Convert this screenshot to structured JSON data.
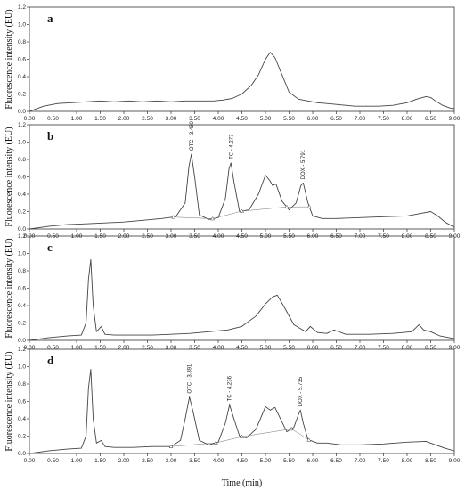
{
  "xlabel": "Time (min)",
  "chart_data": [
    {
      "type": "line",
      "panel": "a",
      "ylabel": "Fluorescence intensity (EU)",
      "xlim": [
        0,
        9
      ],
      "ylim": [
        0,
        1.2
      ],
      "x_ticks": [
        "0.00",
        "0.50",
        "1.00",
        "1.50",
        "2.00",
        "2.50",
        "3.00",
        "3.50",
        "4.00",
        "4.50",
        "5.00",
        "5.50",
        "6.00",
        "6.50",
        "7.00",
        "7.50",
        "8.00",
        "8.50",
        "9.00"
      ],
      "y_ticks": [
        "0.0",
        "0.2",
        "0.4",
        "0.6",
        "0.8",
        "1.0",
        "1.2"
      ],
      "x": [
        0.0,
        0.3,
        0.6,
        0.9,
        1.2,
        1.5,
        1.8,
        2.1,
        2.4,
        2.7,
        3.0,
        3.3,
        3.6,
        3.9,
        4.1,
        4.3,
        4.5,
        4.7,
        4.85,
        5.0,
        5.1,
        5.2,
        5.35,
        5.5,
        5.7,
        5.9,
        6.1,
        6.3,
        6.5,
        6.7,
        6.9,
        7.1,
        7.4,
        7.7,
        8.0,
        8.2,
        8.4,
        8.5,
        8.6,
        8.75,
        8.9,
        9.0
      ],
      "y": [
        0.0,
        0.06,
        0.09,
        0.1,
        0.11,
        0.12,
        0.11,
        0.12,
        0.11,
        0.12,
        0.11,
        0.12,
        0.12,
        0.12,
        0.13,
        0.15,
        0.2,
        0.3,
        0.42,
        0.6,
        0.68,
        0.62,
        0.42,
        0.22,
        0.14,
        0.12,
        0.1,
        0.09,
        0.08,
        0.07,
        0.06,
        0.06,
        0.06,
        0.07,
        0.1,
        0.14,
        0.17,
        0.16,
        0.12,
        0.07,
        0.04,
        0.03
      ],
      "peaks": []
    },
    {
      "type": "line",
      "panel": "b",
      "ylabel": "Fluorescence intensity (EU)",
      "xlim": [
        0,
        9
      ],
      "ylim": [
        0,
        1.2
      ],
      "x_ticks": [
        "0.00",
        "0.50",
        "1.00",
        "1.50",
        "2.00",
        "2.50",
        "3.00",
        "3.50",
        "4.00",
        "4.50",
        "5.00",
        "5.50",
        "6.00",
        "6.50",
        "7.00",
        "7.50",
        "8.00",
        "8.50",
        "9.00"
      ],
      "y_ticks": [
        "0.0",
        "0.2",
        "0.4",
        "0.6",
        "0.8",
        "1.0",
        "1.2"
      ],
      "x": [
        0.0,
        0.4,
        0.8,
        1.2,
        1.6,
        2.0,
        2.4,
        2.8,
        3.1,
        3.3,
        3.38,
        3.43,
        3.5,
        3.6,
        3.8,
        4.0,
        4.15,
        4.23,
        4.27,
        4.33,
        4.45,
        4.65,
        4.85,
        5.0,
        5.1,
        5.15,
        5.22,
        5.35,
        5.5,
        5.65,
        5.75,
        5.8,
        5.9,
        6.0,
        6.2,
        6.5,
        7.0,
        7.5,
        8.0,
        8.3,
        8.5,
        8.65,
        8.8,
        9.0
      ],
      "y": [
        0.0,
        0.03,
        0.05,
        0.06,
        0.07,
        0.08,
        0.1,
        0.12,
        0.14,
        0.3,
        0.72,
        0.86,
        0.6,
        0.16,
        0.11,
        0.13,
        0.35,
        0.7,
        0.76,
        0.55,
        0.2,
        0.22,
        0.4,
        0.62,
        0.55,
        0.5,
        0.52,
        0.32,
        0.22,
        0.3,
        0.5,
        0.53,
        0.3,
        0.15,
        0.12,
        0.12,
        0.13,
        0.14,
        0.15,
        0.18,
        0.2,
        0.15,
        0.08,
        0.02
      ],
      "peaks": [
        {
          "label": "OTC - 3.430",
          "x": 3.43,
          "y": 0.86
        },
        {
          "label": "TC - 4.273",
          "x": 4.27,
          "y": 0.76
        },
        {
          "label": "DOX - 5.791",
          "x": 5.79,
          "y": 0.53
        }
      ],
      "baseline_markers": [
        3.05,
        3.88,
        4.5,
        5.45,
        5.93
      ]
    },
    {
      "type": "line",
      "panel": "c",
      "ylabel": "Fluorescence intensity (EU)",
      "xlim": [
        0,
        9
      ],
      "ylim": [
        0,
        1.2
      ],
      "x_ticks": [
        "0.00",
        "0.50",
        "1.00",
        "1.50",
        "2.00",
        "2.50",
        "3.00",
        "3.50",
        "4.00",
        "4.50",
        "5.00",
        "5.50",
        "6.00",
        "6.50",
        "7.00",
        "7.50",
        "8.00",
        "8.50",
        "9.00"
      ],
      "y_ticks": [
        "0.0",
        "0.2",
        "0.4",
        "0.6",
        "0.8",
        "1.0",
        "1.2"
      ],
      "x": [
        0.0,
        0.4,
        0.8,
        1.1,
        1.2,
        1.25,
        1.3,
        1.35,
        1.42,
        1.52,
        1.6,
        1.8,
        2.2,
        2.6,
        3.0,
        3.4,
        3.8,
        4.2,
        4.5,
        4.8,
        5.0,
        5.15,
        5.25,
        5.4,
        5.6,
        5.85,
        5.95,
        6.1,
        6.3,
        6.45,
        6.7,
        7.2,
        7.7,
        8.1,
        8.25,
        8.35,
        8.5,
        8.7,
        8.9,
        9.0
      ],
      "y": [
        0.0,
        0.03,
        0.05,
        0.06,
        0.2,
        0.7,
        0.93,
        0.4,
        0.1,
        0.16,
        0.07,
        0.06,
        0.06,
        0.06,
        0.07,
        0.08,
        0.1,
        0.12,
        0.16,
        0.28,
        0.42,
        0.5,
        0.52,
        0.38,
        0.18,
        0.1,
        0.16,
        0.09,
        0.08,
        0.12,
        0.07,
        0.07,
        0.08,
        0.1,
        0.18,
        0.12,
        0.1,
        0.05,
        0.03,
        0.02
      ],
      "peaks": []
    },
    {
      "type": "line",
      "panel": "d",
      "ylabel": "Fluorescence intensity (EU)",
      "xlim": [
        0,
        9
      ],
      "ylim": [
        0,
        1.2
      ],
      "x_ticks": [
        "0.00",
        "0.50",
        "1.00",
        "1.50",
        "2.00",
        "2.50",
        "3.00",
        "3.50",
        "4.00",
        "4.50",
        "5.00",
        "5.50",
        "6.00",
        "6.50",
        "7.00",
        "7.50",
        "8.00",
        "8.50",
        "9.00"
      ],
      "y_ticks": [
        "0.0",
        "0.2",
        "0.4",
        "0.6",
        "0.8",
        "1.0",
        "1.2"
      ],
      "x": [
        0.0,
        0.4,
        0.8,
        1.1,
        1.2,
        1.25,
        1.3,
        1.35,
        1.42,
        1.52,
        1.6,
        1.8,
        2.2,
        2.6,
        3.0,
        3.2,
        3.3,
        3.39,
        3.48,
        3.6,
        3.8,
        4.0,
        4.15,
        4.24,
        4.32,
        4.45,
        4.6,
        4.8,
        5.0,
        5.1,
        5.2,
        5.3,
        5.45,
        5.6,
        5.7,
        5.74,
        5.8,
        5.9,
        6.1,
        6.3,
        6.6,
        7.0,
        7.5,
        8.0,
        8.4,
        8.6,
        8.8,
        9.0
      ],
      "y": [
        0.0,
        0.03,
        0.05,
        0.06,
        0.2,
        0.75,
        0.97,
        0.4,
        0.12,
        0.15,
        0.08,
        0.07,
        0.07,
        0.08,
        0.08,
        0.15,
        0.4,
        0.65,
        0.45,
        0.15,
        0.1,
        0.13,
        0.35,
        0.56,
        0.42,
        0.2,
        0.18,
        0.28,
        0.54,
        0.5,
        0.53,
        0.42,
        0.25,
        0.3,
        0.45,
        0.5,
        0.35,
        0.16,
        0.12,
        0.12,
        0.1,
        0.1,
        0.11,
        0.13,
        0.14,
        0.1,
        0.06,
        0.03
      ],
      "peaks": [
        {
          "label": "OTC - 3.391",
          "x": 3.39,
          "y": 0.65
        },
        {
          "label": "TC - 4.236",
          "x": 4.24,
          "y": 0.56
        },
        {
          "label": "DOX - 5.735",
          "x": 5.74,
          "y": 0.5
        }
      ],
      "baseline_markers": [
        3.0,
        3.95,
        4.5,
        5.55,
        5.92
      ]
    }
  ]
}
